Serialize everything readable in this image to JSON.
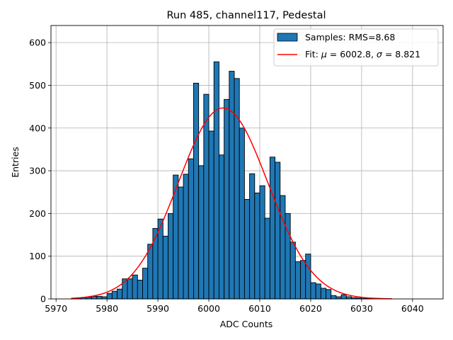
{
  "chart_data": {
    "type": "histogram",
    "title": "Run 485, channel117, Pedestal",
    "xlabel": "ADC Counts",
    "ylabel": "Entries",
    "xlim": [
      5969,
      6046
    ],
    "ylim": [
      0,
      640
    ],
    "grid": true,
    "legend_position": "top-right",
    "bin_width": 1,
    "bins_start": 5973,
    "bar_color": "#1f77b4",
    "fit_color": "#ff0000",
    "x_ticks": [
      5970,
      5980,
      5990,
      6000,
      6010,
      6020,
      6030,
      6040
    ],
    "y_ticks": [
      0,
      100,
      200,
      300,
      400,
      500,
      600
    ],
    "counts": [
      1,
      2,
      3,
      4,
      6,
      6,
      5,
      13,
      18,
      23,
      47,
      47,
      56,
      44,
      72,
      128,
      165,
      187,
      147,
      200,
      290,
      262,
      292,
      328,
      505,
      312,
      479,
      393,
      555,
      337,
      467,
      533,
      516,
      400,
      233,
      293,
      248,
      265,
      189,
      332,
      320,
      242,
      200,
      133,
      87,
      90,
      105,
      38,
      35,
      25,
      22,
      8,
      5,
      10,
      5,
      3,
      2,
      1,
      1,
      0,
      0,
      0,
      0,
      0
    ],
    "series": [
      {
        "name": "Samples: RMS=8.68",
        "kind": "histogram"
      },
      {
        "name": "Fit: μ = 6002.8, σ = 8.821",
        "kind": "gaussian",
        "mu": 6002.8,
        "sigma": 8.821,
        "amplitude": 447,
        "x_range": [
          5973,
          6036
        ]
      }
    ]
  },
  "legend": {
    "hist_label": "Samples: RMS=8.68",
    "fit_prefix": "Fit: ",
    "mu_symbol": "μ",
    "fit_mid": " = 6002.8, ",
    "sigma_symbol": "σ",
    "fit_suffix": " = 8.821"
  }
}
